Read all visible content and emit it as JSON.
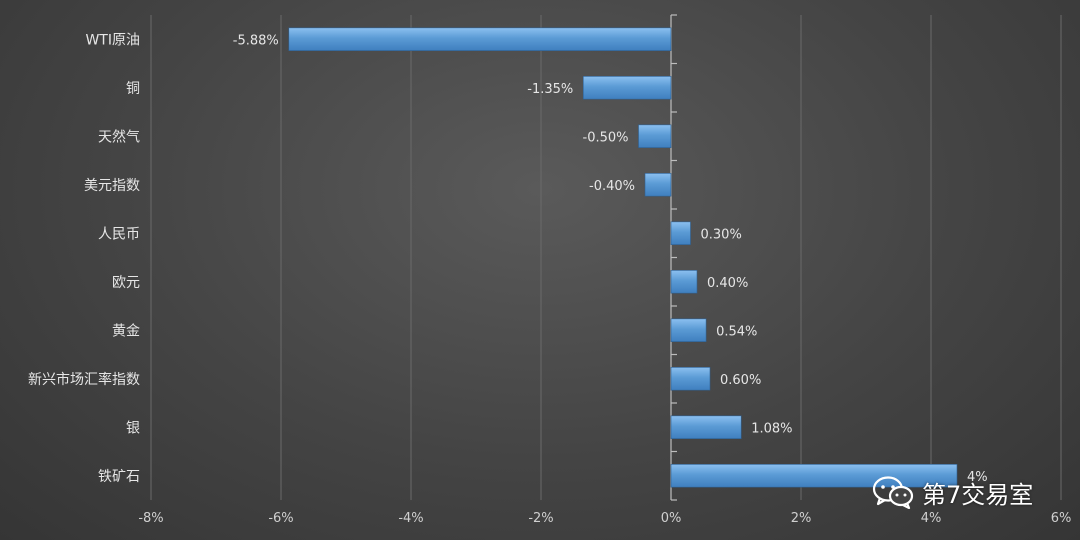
{
  "chart_data": {
    "type": "bar",
    "orientation": "horizontal",
    "categories": [
      "WTI原油",
      "铜",
      "天然气",
      "美元指数",
      "人民币",
      "欧元",
      "黄金",
      "新兴市场汇率指数",
      "银",
      "铁矿石"
    ],
    "values": [
      -5.88,
      -1.35,
      -0.5,
      -0.4,
      0.3,
      0.4,
      0.54,
      0.6,
      1.08,
      4.4
    ],
    "data_labels": [
      "-5.88%",
      "-1.35%",
      "-0.50%",
      "-0.40%",
      "0.30%",
      "0.40%",
      "0.54%",
      "0.60%",
      "1.08%",
      "4%"
    ],
    "xlim": [
      -8,
      6
    ],
    "x_ticks": [
      -8,
      -6,
      -4,
      -2,
      0,
      2,
      4,
      6
    ],
    "x_tick_labels": [
      "-8%",
      "-6%",
      "-4%",
      "-2%",
      "0%",
      "2%",
      "4%",
      "6%"
    ],
    "grid": true,
    "bar_color": "#5b9bd5",
    "title": "",
    "xlabel": "",
    "ylabel": ""
  },
  "watermark": {
    "text": "第7交易室",
    "icon": "wechat-icon"
  }
}
